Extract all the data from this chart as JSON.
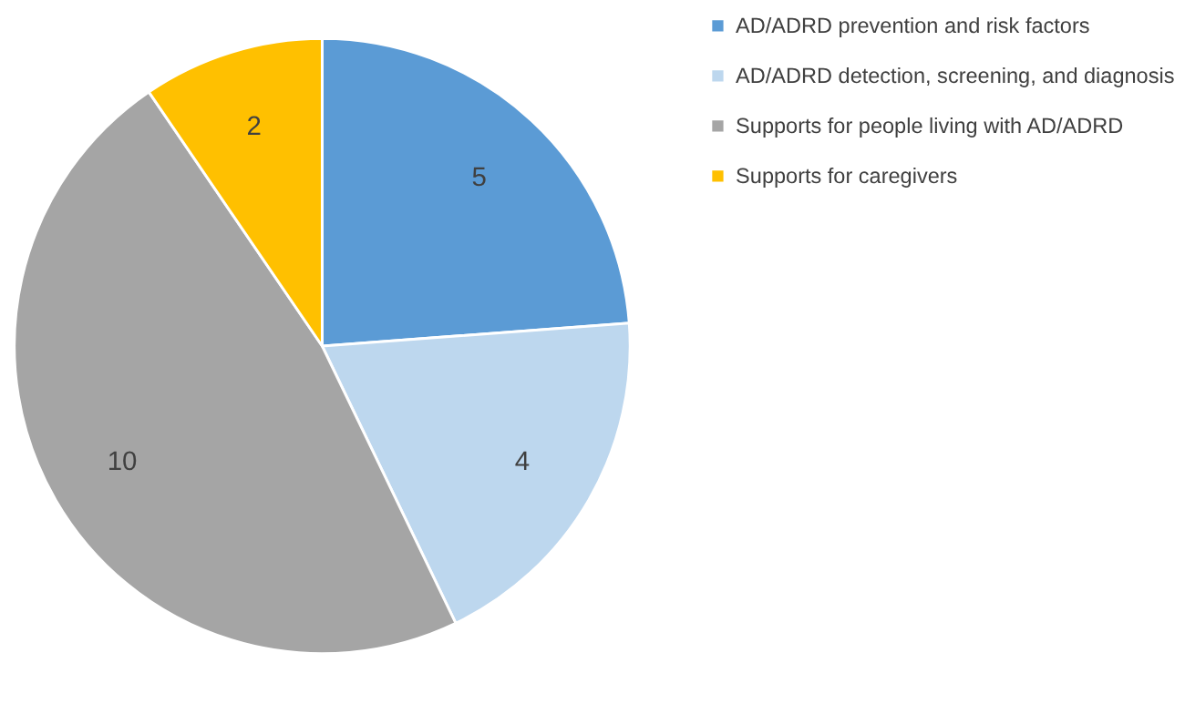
{
  "chart_data": {
    "type": "pie",
    "categories": [
      "AD/ADRD prevention and risk factors",
      "AD/ADRD detection, screening, and diagnosis",
      "Supports for people living with AD/ADRD",
      "Supports for caregivers"
    ],
    "values": [
      5,
      4,
      10,
      2
    ],
    "colors": [
      "#5b9bd5",
      "#bdd7ee",
      "#a5a5a5",
      "#ffc000"
    ],
    "data_labels": true,
    "legend": "right"
  }
}
